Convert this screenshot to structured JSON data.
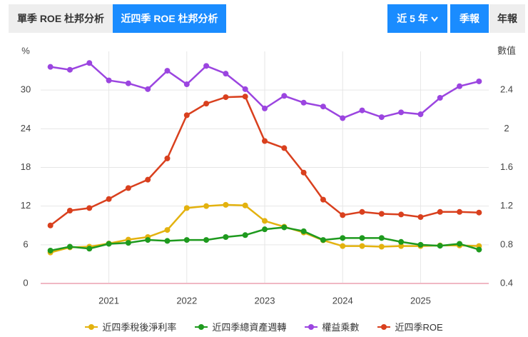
{
  "tabs": [
    "單季 ROE 杜邦分析",
    "近四季 ROE 杜邦分析"
  ],
  "range": "近 5 年",
  "periods": [
    "季報",
    "年報"
  ],
  "chart_data": {
    "type": "line",
    "y_label": "%",
    "y2_label": "數值",
    "categories": [
      null,
      null,
      null,
      "2021",
      null,
      null,
      null,
      "2022",
      null,
      null,
      null,
      "2023",
      null,
      null,
      null,
      "2024",
      null,
      null,
      null,
      "2025",
      null,
      null,
      null
    ],
    "ylim": [
      0,
      36
    ],
    "yticks": [
      0,
      6,
      12,
      18,
      24,
      30
    ],
    "y2lim": [
      0.4,
      2.8
    ],
    "y2ticks": [
      0.4,
      0.8,
      1.2,
      1.6,
      2,
      2.4
    ],
    "grid": true,
    "legend": "bottom",
    "series": [
      {
        "name": "近四季稅後淨利率",
        "color": "#e3b20f",
        "values": [
          4.8,
          5.6,
          5.7,
          6.2,
          6.8,
          7.2,
          8.3,
          11.7,
          12.0,
          12.2,
          12.1,
          9.7,
          8.8,
          7.9,
          6.7,
          5.8,
          5.8,
          5.7,
          5.8,
          5.8,
          5.9,
          5.9,
          5.8
        ]
      },
      {
        "name": "近四季總資產週轉",
        "color": "#1e9a1e",
        "axis": "y2",
        "values": [
          0.74,
          0.78,
          0.76,
          0.81,
          0.82,
          0.85,
          0.84,
          0.85,
          0.85,
          0.88,
          0.9,
          0.96,
          0.98,
          0.94,
          0.85,
          0.87,
          0.87,
          0.87,
          0.83,
          0.8,
          0.79,
          0.81,
          0.75
        ]
      },
      {
        "name": "權益乘數",
        "color": "#9b45e0",
        "axis": "y2",
        "values": [
          2.64,
          2.61,
          2.68,
          2.5,
          2.47,
          2.41,
          2.6,
          2.46,
          2.65,
          2.57,
          2.41,
          2.21,
          2.34,
          2.27,
          2.23,
          2.11,
          2.19,
          2.12,
          2.17,
          2.15,
          2.32,
          2.44,
          2.49
        ]
      },
      {
        "name": "近四季ROE",
        "color": "#d9401e",
        "values": [
          9.0,
          11.3,
          11.7,
          13.1,
          14.8,
          16.1,
          19.4,
          26.1,
          27.9,
          28.9,
          29.0,
          22.1,
          21.0,
          17.2,
          13.0,
          10.6,
          11.1,
          10.8,
          10.7,
          10.3,
          11.1,
          11.1,
          11.0
        ]
      }
    ]
  }
}
